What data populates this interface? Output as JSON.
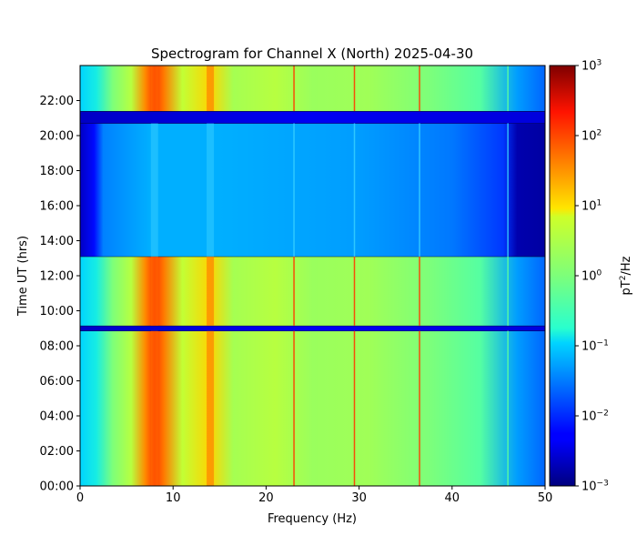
{
  "chart_data": {
    "type": "heatmap",
    "title": "Spectrogram for Channel X (North) 2025-04-30",
    "xlabel": "Frequency (Hz)",
    "ylabel": "Time UT (hrs)",
    "xlim": [
      0,
      50
    ],
    "ylim": [
      0,
      24
    ],
    "x_ticks": [
      0,
      10,
      20,
      30,
      40,
      50
    ],
    "x_tick_labels": [
      "0",
      "10",
      "20",
      "30",
      "40",
      "50"
    ],
    "y_ticks": [
      0,
      2,
      4,
      6,
      8,
      10,
      12,
      14,
      16,
      18,
      20,
      22
    ],
    "y_tick_labels": [
      "00:00",
      "02:00",
      "04:00",
      "06:00",
      "08:00",
      "10:00",
      "12:00",
      "14:00",
      "16:00",
      "18:00",
      "20:00",
      "22:00"
    ],
    "colorbar": {
      "label_main": "pT",
      "label_sup": "2",
      "label_rest": "/Hz",
      "scale": "log",
      "colormap": "jet",
      "range": [
        0.001,
        1000
      ],
      "ticks": [
        {
          "exp": -3,
          "base": "10",
          "sup": "−3"
        },
        {
          "exp": -2,
          "base": "10",
          "sup": "−2"
        },
        {
          "exp": -1,
          "base": "10",
          "sup": "−1"
        },
        {
          "exp": 0,
          "base": "10",
          "sup": "0"
        },
        {
          "exp": 1,
          "base": "10",
          "sup": "1"
        },
        {
          "exp": 2,
          "base": "10",
          "sup": "2"
        },
        {
          "exp": 3,
          "base": "10",
          "sup": "3"
        }
      ]
    },
    "time_segments": [
      {
        "t_start": 0.0,
        "t_end": 8.85,
        "level": "high"
      },
      {
        "t_start": 8.85,
        "t_end": 9.15,
        "level": "gap"
      },
      {
        "t_start": 9.15,
        "t_end": 13.1,
        "level": "high"
      },
      {
        "t_start": 13.1,
        "t_end": 20.7,
        "level": "low"
      },
      {
        "t_start": 20.7,
        "t_end": 21.4,
        "level": "gap"
      },
      {
        "t_start": 21.4,
        "t_end": 24.0,
        "level": "high"
      }
    ],
    "spectral_lines_hz": [
      8,
      14,
      23,
      29.5,
      36.5,
      46
    ]
  }
}
